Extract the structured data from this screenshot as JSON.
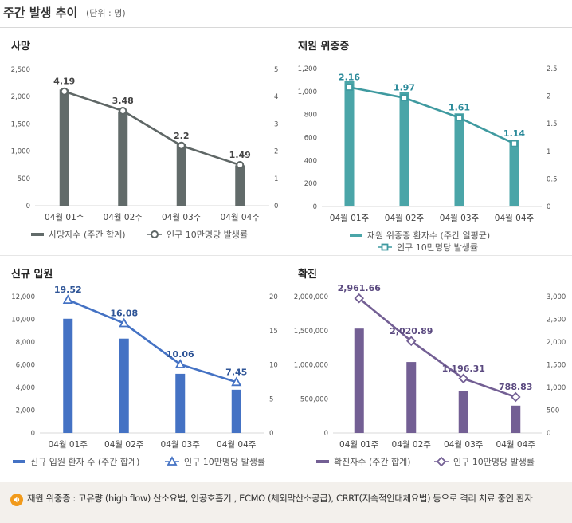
{
  "header": {
    "title": "주간 발생 추이",
    "unit": "(단위 : 명)"
  },
  "note": {
    "text": "재원 위중증 : 고유량 (high flow) 산소요법, 인공호흡기 , ECMO (체외막산소공급), CRRT(지속적인대체요법) 등으로 격리 치료 중인 환자"
  },
  "colors": {
    "deaths": "#626b6a",
    "icu": "#4aa5a8",
    "admit": "#4472c4",
    "confirmed": "#735f94"
  },
  "chart_data": [
    {
      "type": "bar",
      "title": "사망",
      "categories": [
        "04월 01주",
        "04월 02주",
        "04월 03주",
        "04월 04주"
      ],
      "series": [
        {
          "name": "사망자수 (주간 합계)",
          "type": "bar",
          "axis": "left",
          "values": [
            2130,
            1730,
            1130,
            740
          ]
        },
        {
          "name": "인구 10만명당 발생률",
          "type": "line",
          "axis": "right",
          "marker": "circle",
          "values": [
            4.19,
            3.48,
            2.2,
            1.49
          ]
        }
      ],
      "y_left": {
        "min": 0,
        "max": 2500,
        "ticks": [
          "0",
          "500",
          "1,000",
          "1,500",
          "2,000",
          "2,500"
        ]
      },
      "y_right": {
        "min": 0,
        "max": 5,
        "ticks": [
          "0",
          "1",
          "2",
          "3",
          "4",
          "5"
        ]
      },
      "labels": [
        "4.19",
        "3.48",
        "2.2",
        "1.49"
      ]
    },
    {
      "type": "bar",
      "title": "재원 위중증",
      "categories": [
        "04월 01주",
        "04월 02주",
        "04월 03주",
        "04월 04주"
      ],
      "series": [
        {
          "name": "재원 위중증 환자수 (주간 일평균)",
          "type": "bar",
          "axis": "left",
          "values": [
            1095,
            995,
            810,
            580
          ]
        },
        {
          "name": "인구 10만명당 발생률",
          "type": "line",
          "axis": "right",
          "marker": "square",
          "values": [
            2.16,
            1.97,
            1.61,
            1.14
          ]
        }
      ],
      "y_left": {
        "min": 0,
        "max": 1200,
        "ticks": [
          "0",
          "200",
          "400",
          "600",
          "800",
          "1,000",
          "1,200"
        ]
      },
      "y_right": {
        "min": 0,
        "max": 2.5,
        "ticks": [
          "0",
          "0.5",
          "1",
          "1.5",
          "2",
          "2.5"
        ]
      },
      "labels": [
        "2.16",
        "1.97",
        "1.61",
        "1.14"
      ]
    },
    {
      "type": "bar",
      "title": "신규 입원",
      "categories": [
        "04월 01주",
        "04월 02주",
        "04월 03주",
        "04월 04주"
      ],
      "series": [
        {
          "name": "신규 입원 환자 수 (주간 합계)",
          "type": "bar",
          "axis": "left",
          "values": [
            10050,
            8300,
            5200,
            3800
          ]
        },
        {
          "name": "인구 10만명당 발생률",
          "type": "line",
          "axis": "right",
          "marker": "triangle",
          "values": [
            19.52,
            16.08,
            10.06,
            7.45
          ]
        }
      ],
      "y_left": {
        "min": 0,
        "max": 12000,
        "ticks": [
          "0",
          "2,000",
          "4,000",
          "6,000",
          "8,000",
          "10,000",
          "12,000"
        ]
      },
      "y_right": {
        "min": 0,
        "max": 20,
        "ticks": [
          "0",
          "5",
          "10",
          "15",
          "20"
        ]
      },
      "labels": [
        "19.52",
        "16.08",
        "10.06",
        "7.45"
      ]
    },
    {
      "type": "bar",
      "title": "확진",
      "categories": [
        "04월 01주",
        "04월 02주",
        "04월 03주",
        "04월 04주"
      ],
      "series": [
        {
          "name": "확진자수 (주간 합계)",
          "type": "bar",
          "axis": "left",
          "values": [
            1530000,
            1040000,
            610000,
            400000
          ]
        },
        {
          "name": "인구 10만명당 발생률",
          "type": "line",
          "axis": "right",
          "marker": "diamond",
          "values": [
            2961.66,
            2020.89,
            1196.31,
            788.83
          ]
        }
      ],
      "y_left": {
        "min": 0,
        "max": 2000000,
        "ticks": [
          "0",
          "500,000",
          "1,000,000",
          "1,500,000",
          "2,000,000"
        ]
      },
      "y_right": {
        "min": 0,
        "max": 3000,
        "ticks": [
          "0",
          "500",
          "1,000",
          "1,500",
          "2,000",
          "2,500",
          "3,000"
        ]
      },
      "labels": [
        "2,961.66",
        "2,020.89",
        "1,196.31",
        "788.83"
      ]
    }
  ]
}
